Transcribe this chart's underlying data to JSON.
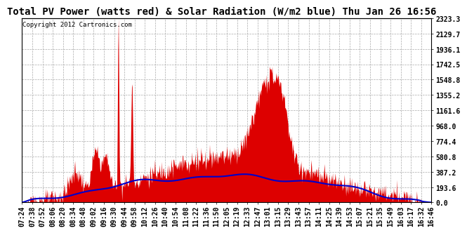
{
  "title": "Total PV Power (watts red) & Solar Radiation (W/m2 blue) Thu Jan 26 16:56",
  "copyright": "Copyright 2012 Cartronics.com",
  "y_ticks": [
    0.0,
    193.6,
    387.2,
    580.8,
    774.4,
    968.0,
    1161.6,
    1355.2,
    1548.8,
    1742.5,
    1936.1,
    2129.7,
    2323.3
  ],
  "y_max": 2323.3,
  "x_labels": [
    "07:24",
    "07:38",
    "07:52",
    "08:06",
    "08:20",
    "08:34",
    "08:48",
    "09:02",
    "09:16",
    "09:30",
    "09:44",
    "09:58",
    "10:12",
    "10:26",
    "10:40",
    "10:54",
    "11:08",
    "11:22",
    "11:36",
    "11:50",
    "12:05",
    "12:19",
    "12:33",
    "12:47",
    "13:01",
    "13:15",
    "13:29",
    "13:43",
    "13:57",
    "14:11",
    "14:25",
    "14:39",
    "14:53",
    "15:07",
    "15:21",
    "15:35",
    "15:49",
    "16:03",
    "16:17",
    "16:32",
    "16:46"
  ],
  "background_color": "#ffffff",
  "plot_bg_color": "#ffffff",
  "grid_color": "#aaaaaa",
  "red_color": "#dd0000",
  "blue_color": "#0000cc",
  "title_fontsize": 10,
  "tick_fontsize": 7,
  "copyright_fontsize": 6.5
}
